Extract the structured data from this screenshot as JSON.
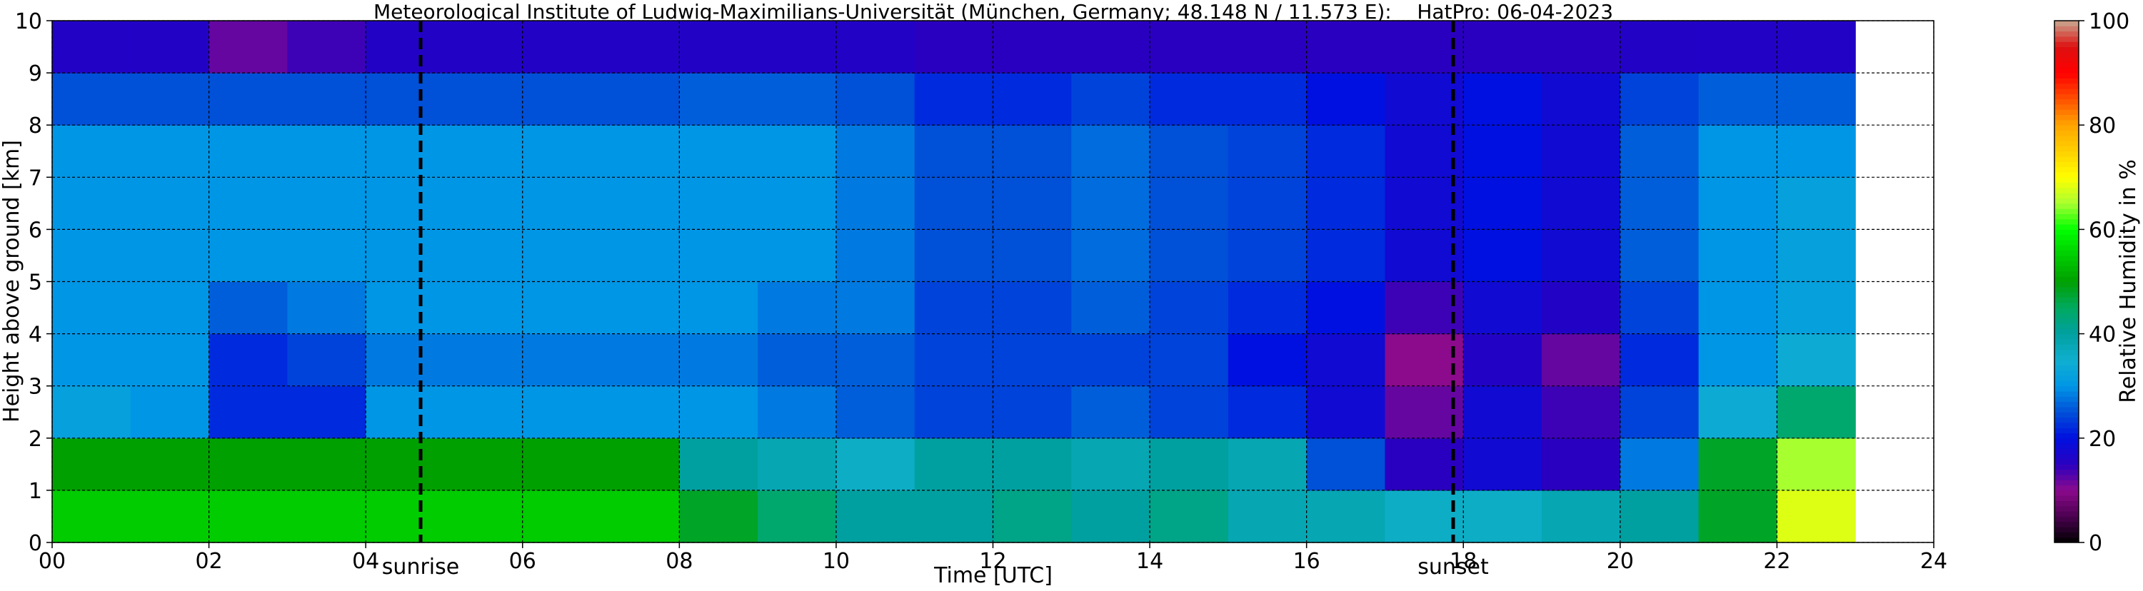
{
  "chart_data": {
    "type": "heatmap",
    "title": "Meteorological Institute of Ludwig-Maximilians-Universität (München, Germany; 48.148 N / 11.573 E):    HatPro: 06-04-2023",
    "xlabel": "Time [UTC]",
    "ylabel": "Height above ground [km]",
    "xlim": [
      0,
      24
    ],
    "xticks": [
      {
        "value": 0,
        "label": "00"
      },
      {
        "value": 2,
        "label": "02"
      },
      {
        "value": 4,
        "label": "04"
      },
      {
        "value": 6,
        "label": "06"
      },
      {
        "value": 8,
        "label": "08"
      },
      10,
      12,
      14,
      16,
      18,
      20,
      22,
      24
    ],
    "ylim": [
      0,
      10
    ],
    "yticks": [
      0,
      1,
      2,
      3,
      4,
      5,
      6,
      7,
      8,
      9,
      10
    ],
    "grid": true,
    "x": [
      0.5,
      1.5,
      2.5,
      3.5,
      4.5,
      5.5,
      6.5,
      7.5,
      8.5,
      9.5,
      10.5,
      11.5,
      12.5,
      13.5,
      14.5,
      15.5,
      16.5,
      17.5,
      18.5,
      19.5,
      20.5,
      21.5,
      22.5
    ],
    "y": [
      0.5,
      1.5,
      2.5,
      3.5,
      4.5,
      5.5,
      6.5,
      7.5,
      8.5,
      9.5
    ],
    "values": [
      [
        55,
        55,
        55,
        55,
        55,
        55,
        55,
        55,
        48,
        44,
        40,
        40,
        42,
        40,
        42,
        38,
        38,
        36,
        36,
        38,
        40,
        48,
        68
      ],
      [
        50,
        50,
        50,
        50,
        50,
        50,
        50,
        50,
        40,
        38,
        36,
        40,
        40,
        38,
        40,
        38,
        25,
        15,
        18,
        15,
        28,
        48,
        65
      ],
      [
        32,
        30,
        22,
        22,
        30,
        30,
        30,
        30,
        30,
        28,
        26,
        24,
        24,
        26,
        24,
        22,
        18,
        12,
        18,
        14,
        24,
        34,
        44
      ],
      [
        30,
        30,
        22,
        24,
        28,
        28,
        28,
        28,
        28,
        26,
        26,
        24,
        24,
        24,
        24,
        20,
        18,
        10,
        16,
        12,
        22,
        30,
        34
      ],
      [
        30,
        30,
        26,
        28,
        30,
        30,
        30,
        30,
        30,
        28,
        28,
        24,
        24,
        26,
        24,
        22,
        20,
        14,
        18,
        16,
        24,
        30,
        32
      ],
      [
        30,
        30,
        30,
        30,
        30,
        30,
        30,
        30,
        30,
        30,
        28,
        25,
        25,
        27,
        25,
        24,
        22,
        18,
        20,
        18,
        26,
        30,
        32
      ],
      [
        30,
        30,
        30,
        30,
        30,
        30,
        30,
        30,
        30,
        30,
        28,
        25,
        25,
        27,
        25,
        24,
        22,
        18,
        20,
        18,
        26,
        30,
        32
      ],
      [
        30,
        30,
        30,
        30,
        30,
        30,
        30,
        30,
        30,
        30,
        28,
        25,
        25,
        27,
        25,
        24,
        22,
        18,
        20,
        18,
        26,
        30,
        30
      ],
      [
        25,
        25,
        25,
        25,
        25,
        25,
        25,
        25,
        26,
        26,
        25,
        22,
        22,
        24,
        22,
        22,
        20,
        18,
        20,
        18,
        24,
        26,
        26
      ],
      [
        16,
        16,
        12,
        14,
        16,
        16,
        16,
        16,
        16,
        16,
        16,
        15,
        15,
        15,
        15,
        15,
        15,
        15,
        15,
        15,
        16,
        16,
        16
      ]
    ],
    "annotations": [
      {
        "label": "sunrise",
        "x": 4.7
      },
      {
        "label": "sunset",
        "x": 17.87
      }
    ],
    "colorbar": {
      "label": "Relative Humidity in %",
      "clim": [
        0,
        100
      ],
      "ticks": [
        0,
        20,
        40,
        60,
        80,
        100
      ],
      "colormap": [
        "#000000",
        "#4a0050",
        "#8c0a8c",
        "#2a00c0",
        "#0010e0",
        "#0050d8",
        "#0096e6",
        "#10b0d0",
        "#00a0a0",
        "#00aa60",
        "#00a000",
        "#00cc00",
        "#00ff00",
        "#a8ff30",
        "#ffff00",
        "#ffd000",
        "#ffa500",
        "#ff5000",
        "#ff0000",
        "#dd1010",
        "#c8a890"
      ]
    }
  }
}
